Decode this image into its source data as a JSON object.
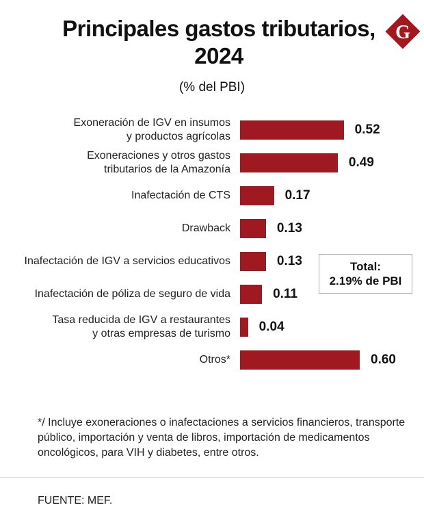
{
  "title_lines": [
    "Principales gastos tributarios,",
    "2024"
  ],
  "subtitle": "(% del PBI)",
  "logo_letter": "G",
  "colors": {
    "bar": "#9e1a20",
    "logo": "#a3171f"
  },
  "chart_data": {
    "type": "bar",
    "orientation": "horizontal",
    "title": "Principales gastos tributarios, 2024",
    "ylabel": "(% del PBI)",
    "categories": [
      [
        "Exoneración de IGV en insumos",
        "y productos agrícolas"
      ],
      [
        "Exoneraciones y otros gastos",
        "tributarios de la Amazonía"
      ],
      [
        "Inafectación de CTS"
      ],
      [
        "Drawback"
      ],
      [
        "Inafectación de IGV a servicios educativos"
      ],
      [
        "Inafectación de póliza de seguro de vida"
      ],
      [
        "Tasa reducida de IGV a restaurantes",
        "y otras empresas de turismo"
      ],
      [
        "Otros*"
      ]
    ],
    "values": [
      0.52,
      0.49,
      0.17,
      0.13,
      0.13,
      0.11,
      0.04,
      0.6
    ],
    "value_labels": [
      "0.52",
      "0.49",
      "0.17",
      "0.13",
      "0.13",
      "0.11",
      "0.04",
      "0.60"
    ],
    "xlim": [
      0,
      0.6
    ],
    "grid": false
  },
  "total": {
    "line1": "Total:",
    "line2": "2.19% de PBI"
  },
  "note": "*/ Incluye exoneraciones o inafectaciones a servicios financieros, transporte público, importación y venta de libros, importación de medicamentos oncológicos, para VIH y diabetes, entre otros.",
  "source": "FUENTE: MEF."
}
